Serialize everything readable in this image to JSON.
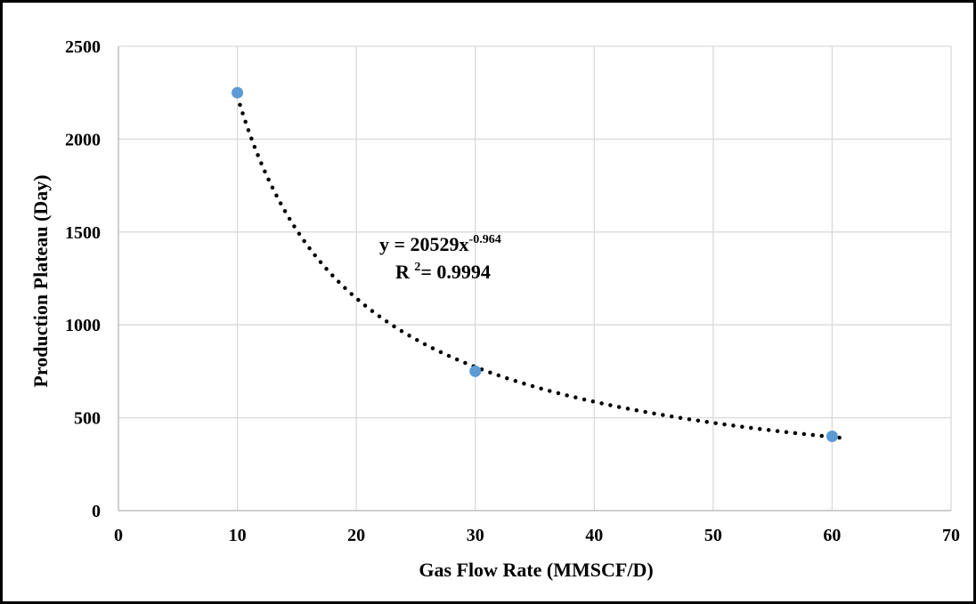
{
  "chart_data": {
    "type": "scatter",
    "xlabel": "Gas Flow Rate (MMSCF/D)",
    "ylabel": "Production Plateau (Day)",
    "xlim": [
      0,
      70
    ],
    "ylim": [
      0,
      2500
    ],
    "xticks": [
      0,
      10,
      20,
      30,
      40,
      50,
      60,
      70
    ],
    "yticks": [
      0,
      500,
      1000,
      1500,
      2000,
      2500
    ],
    "grid": true,
    "series": [
      {
        "x": [
          10,
          30,
          60
        ],
        "y": [
          2250,
          750,
          400
        ],
        "color": "#5b9bd5"
      }
    ],
    "trendline": {
      "kind": "power",
      "a": 20529,
      "b": -0.964,
      "x_range": [
        10,
        61
      ],
      "color": "#000000",
      "style": "dotted"
    },
    "annotations": {
      "equation_main": "y = 20529x",
      "equation_exp": "-0.964",
      "r2_prefix": "R ",
      "r2_sup": "2",
      "r2_value": "= 0.9994"
    }
  }
}
